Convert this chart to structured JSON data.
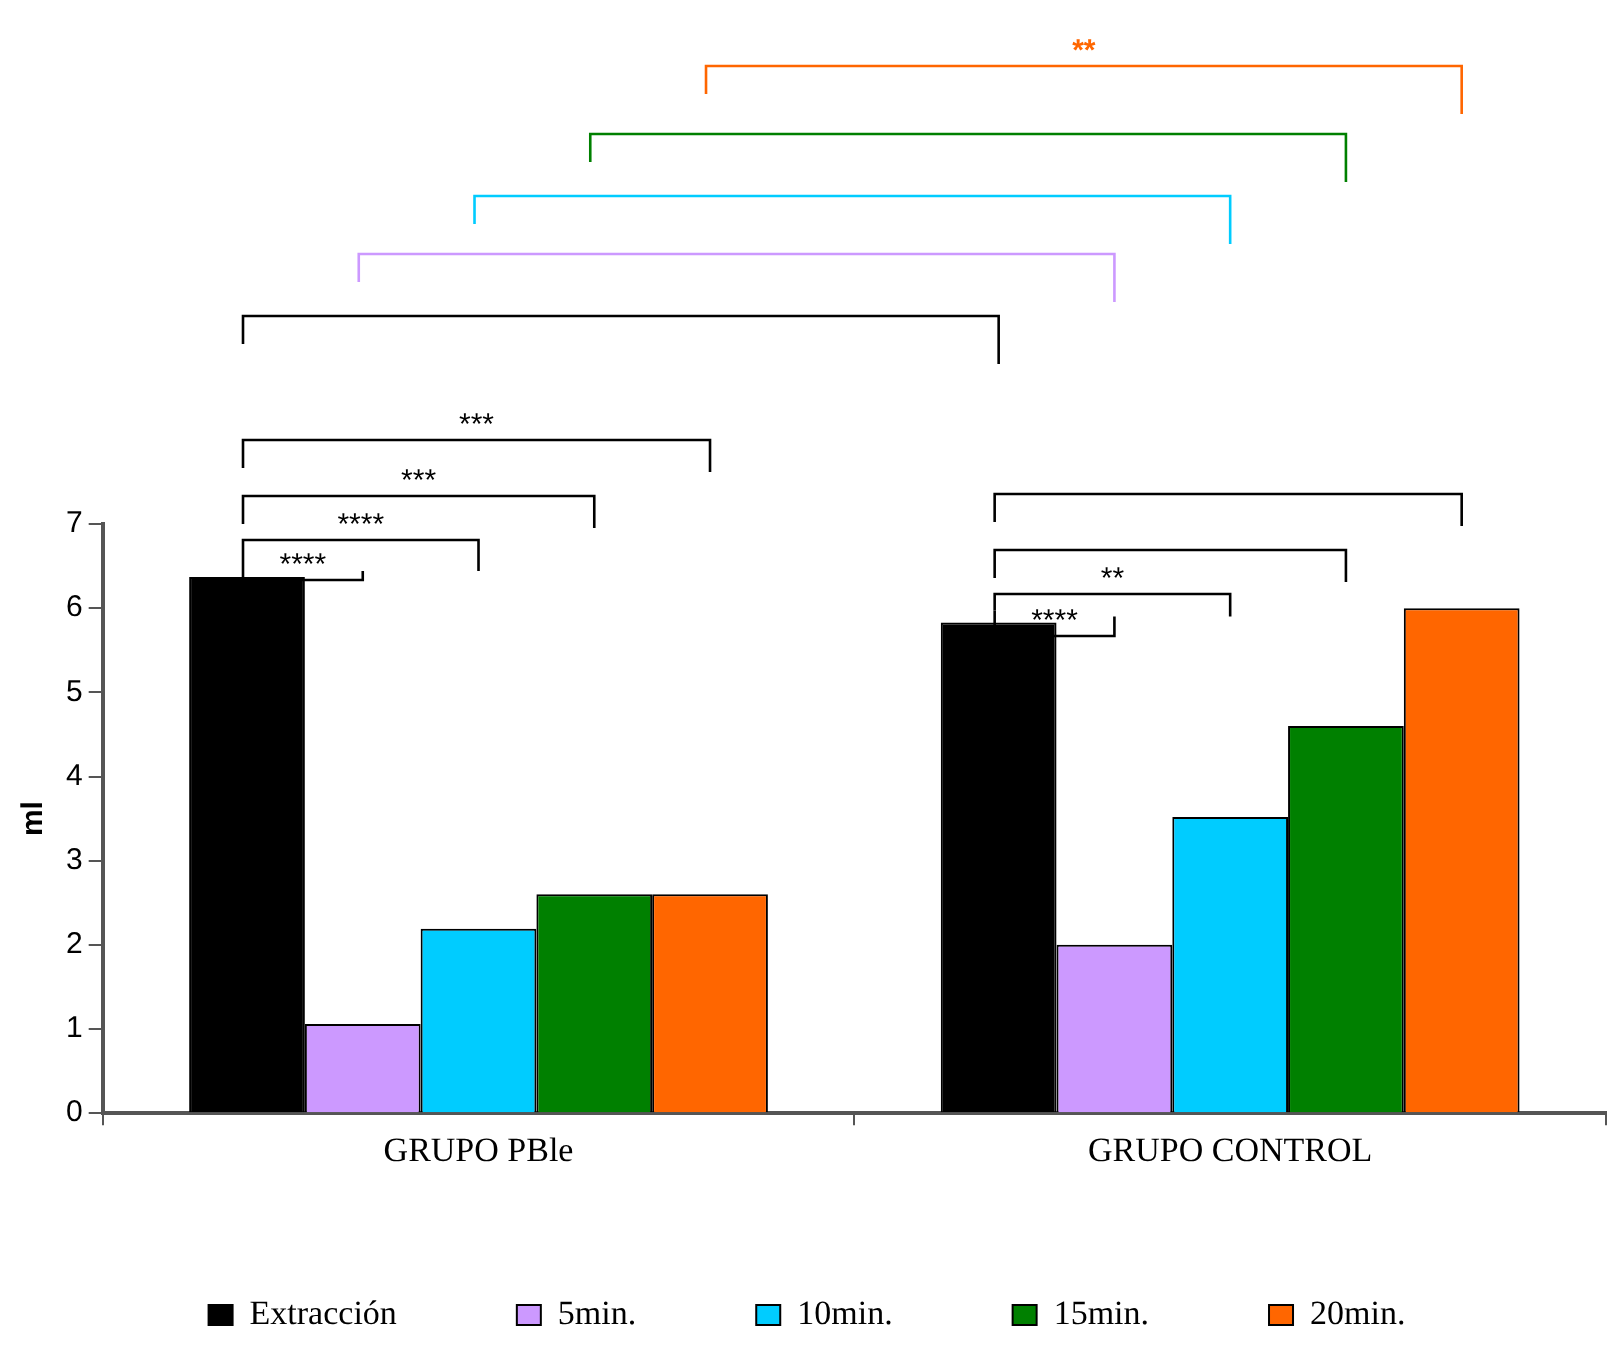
{
  "chart_data": {
    "type": "bar",
    "categories": [
      "GRUPO PBle",
      "GRUPO CONTROL"
    ],
    "ylabel": "ml",
    "ylim": [
      0,
      7
    ],
    "yticks": [
      0,
      1,
      2,
      3,
      4,
      5,
      6,
      7
    ],
    "grid": false,
    "legend": "bottom",
    "series": [
      {
        "name": "Extracción",
        "color": "#000000",
        "values": [
          6.37,
          5.83
        ]
      },
      {
        "name": "5min.",
        "color": "#cc99ff",
        "values": [
          1.06,
          2.0
        ]
      },
      {
        "name": "10min.",
        "color": "#00ccff",
        "values": [
          2.19,
          3.52
        ]
      },
      {
        "name": "15min.",
        "color": "#008000",
        "values": [
          2.6,
          4.6
        ]
      },
      {
        "name": "20min.",
        "color": "#ff6600",
        "values": [
          2.6,
          6.0
        ]
      }
    ],
    "annotations": [
      "****",
      "****",
      "***",
      "***",
      "****",
      "**",
      "**"
    ]
  }
}
